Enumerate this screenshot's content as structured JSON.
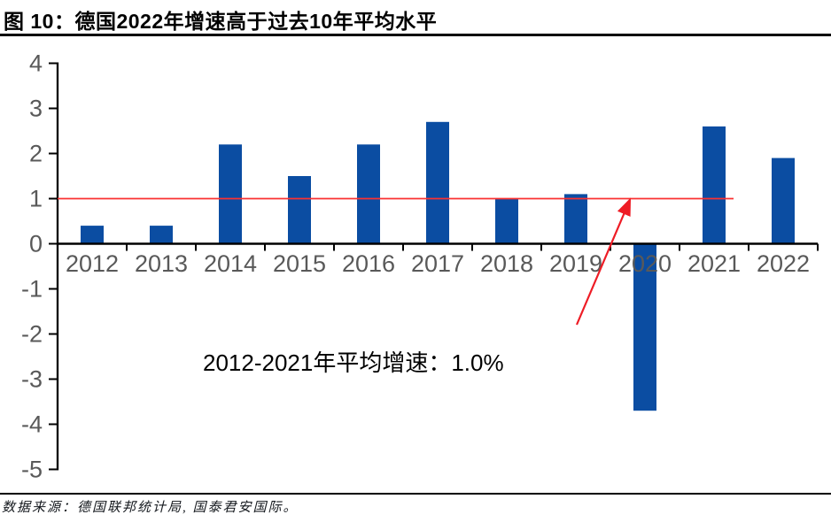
{
  "figure": {
    "title": "图 10：德国2022年增速高于过去10年平均水平",
    "source": "数据来源：德国联邦统计局, 国泰君安国际。"
  },
  "chart_data": {
    "type": "bar",
    "title": "",
    "xlabel": "",
    "ylabel": "",
    "categories": [
      "2012",
      "2013",
      "2014",
      "2015",
      "2016",
      "2017",
      "2018",
      "2019",
      "2020",
      "2021",
      "2022"
    ],
    "values": [
      0.4,
      0.4,
      2.2,
      1.5,
      2.2,
      2.7,
      1.0,
      1.1,
      -3.7,
      2.6,
      1.9
    ],
    "ylim": [
      -5,
      4
    ],
    "yticks": [
      4,
      3,
      2,
      1,
      0,
      -1,
      -2,
      -3,
      -4,
      -5
    ],
    "grid": false,
    "legend": null,
    "bar_color": "#0B4DA2",
    "axis_color": "#000000",
    "tick_label_color": "#595959",
    "mean_line": {
      "value": 1.0,
      "span_categories": [
        "2012",
        "2021"
      ],
      "color": "#FA3131"
    },
    "annotation": {
      "text": "2012-2021年平均增速：1.0%",
      "color": "#000000",
      "arrow_color": "#EE1C25"
    }
  }
}
